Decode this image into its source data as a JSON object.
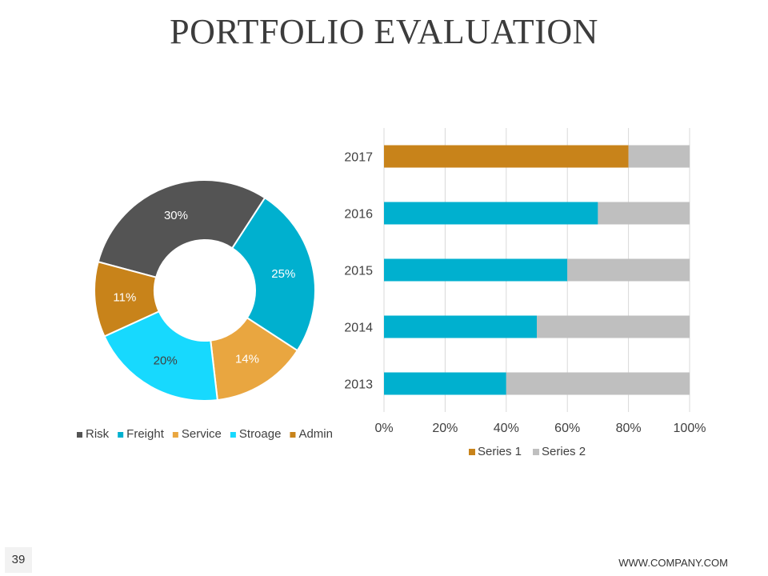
{
  "slide": {
    "title": "PORTFOLIO EVALUATION",
    "page_number": "39",
    "footer_url": "WWW.COMPANY.COM"
  },
  "chart_data": [
    {
      "type": "pie",
      "style": "doughnut",
      "slices": [
        {
          "name": "Risk",
          "value": 30,
          "label": "30%",
          "color": "#545454",
          "label_color": "#ffffff"
        },
        {
          "name": "Freight",
          "value": 25,
          "label": "25%",
          "color": "#00b0cf",
          "label_color": "#ffffff"
        },
        {
          "name": "Service",
          "value": 14,
          "label": "14%",
          "color": "#e9a640",
          "label_color": "#ffffff"
        },
        {
          "name": "Stroage",
          "value": 20,
          "label": "20%",
          "color": "#17d9fe",
          "label_color": "#404040"
        },
        {
          "name": "Admin",
          "value": 11,
          "label": "11%",
          "color": "#c8831a",
          "label_color": "#ffffff"
        }
      ],
      "legend_position": "bottom"
    },
    {
      "type": "bar",
      "orientation": "horizontal",
      "stacked": "percent",
      "categories": [
        "2017",
        "2016",
        "2015",
        "2014",
        "2013"
      ],
      "series": [
        {
          "name": "Series 1",
          "values": [
            80,
            70,
            60,
            50,
            40
          ],
          "color": "#c8831a"
        },
        {
          "name": "Series 2",
          "values": [
            20,
            30,
            40,
            50,
            60
          ],
          "color": "#bfbfbf"
        }
      ],
      "highlight_color": "#00b0cf",
      "x_ticks": [
        "0%",
        "20%",
        "40%",
        "60%",
        "80%",
        "100%"
      ],
      "xlim": [
        0,
        100
      ],
      "grid": true,
      "legend_position": "bottom"
    }
  ]
}
